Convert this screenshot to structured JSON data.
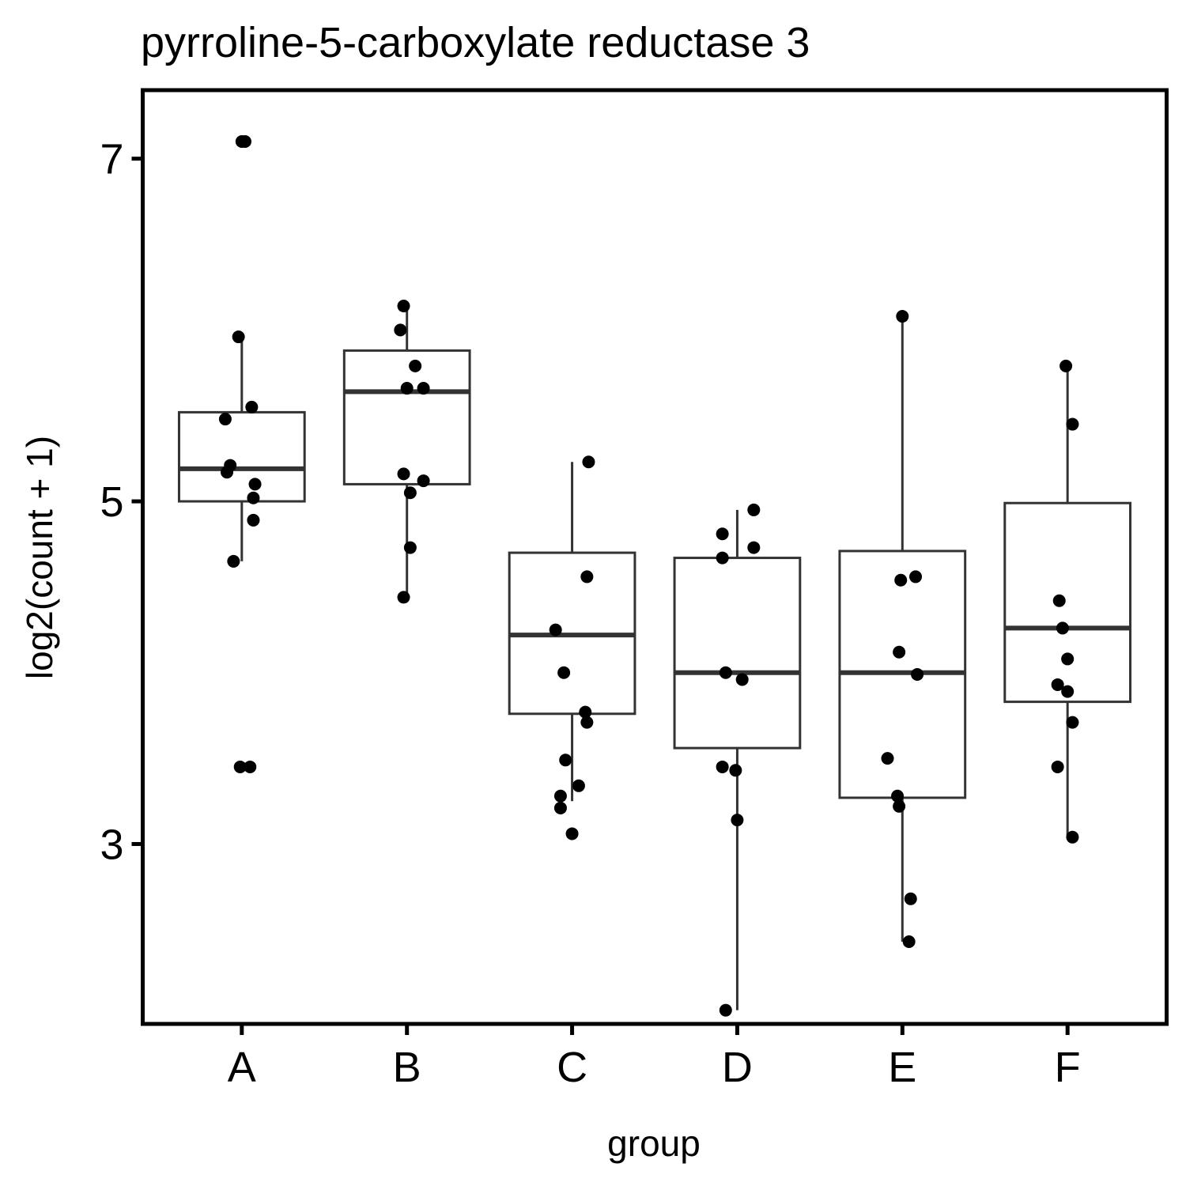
{
  "chart_data": {
    "type": "boxplot",
    "title": "pyrroline-5-carboxylate reductase 3",
    "xlabel": "group",
    "ylabel": "log2(count + 1)",
    "y_ticks": [
      3,
      5,
      7
    ],
    "ylim": [
      1.95,
      7.4
    ],
    "grid": false,
    "legend": "none",
    "colors": {
      "box_stroke": "#333333",
      "point": "#000000",
      "panel_border": "#000000"
    },
    "categories": [
      "A",
      "B",
      "C",
      "D",
      "E",
      "F"
    ],
    "boxes": [
      {
        "group": "A",
        "whisker_low": 4.65,
        "q1": 5.0,
        "median": 5.19,
        "q3": 5.52,
        "whisker_high": 5.96
      },
      {
        "group": "B",
        "whisker_low": 4.44,
        "q1": 5.1,
        "median": 5.64,
        "q3": 5.88,
        "whisker_high": 6.14
      },
      {
        "group": "C",
        "whisker_low": 3.25,
        "q1": 3.76,
        "median": 4.22,
        "q3": 4.7,
        "whisker_high": 5.23
      },
      {
        "group": "D",
        "whisker_low": 2.03,
        "q1": 3.56,
        "median": 4.0,
        "q3": 4.67,
        "whisker_high": 4.95
      },
      {
        "group": "E",
        "whisker_low": 2.43,
        "q1": 3.27,
        "median": 4.0,
        "q3": 4.71,
        "whisker_high": 6.08
      },
      {
        "group": "F",
        "whisker_low": 3.04,
        "q1": 3.83,
        "median": 4.26,
        "q3": 4.99,
        "whisker_high": 5.79
      }
    ],
    "points": [
      {
        "group": "A",
        "x": 1.02,
        "y": 7.1
      },
      {
        "group": "A",
        "x": 1.0,
        "y": 7.1
      },
      {
        "group": "A",
        "x": 0.98,
        "y": 5.96
      },
      {
        "group": "A",
        "x": 1.06,
        "y": 5.55
      },
      {
        "group": "A",
        "x": 0.9,
        "y": 5.48
      },
      {
        "group": "A",
        "x": 0.93,
        "y": 5.21
      },
      {
        "group": "A",
        "x": 0.91,
        "y": 5.17
      },
      {
        "group": "A",
        "x": 1.08,
        "y": 5.1
      },
      {
        "group": "A",
        "x": 1.07,
        "y": 5.02
      },
      {
        "group": "A",
        "x": 1.07,
        "y": 4.89
      },
      {
        "group": "A",
        "x": 0.95,
        "y": 4.65
      },
      {
        "group": "A",
        "x": 0.99,
        "y": 3.45
      },
      {
        "group": "A",
        "x": 1.05,
        "y": 3.45
      },
      {
        "group": "B",
        "x": 1.98,
        "y": 6.14
      },
      {
        "group": "B",
        "x": 1.96,
        "y": 6.0
      },
      {
        "group": "B",
        "x": 2.05,
        "y": 5.79
      },
      {
        "group": "B",
        "x": 2.0,
        "y": 5.66
      },
      {
        "group": "B",
        "x": 2.1,
        "y": 5.66
      },
      {
        "group": "B",
        "x": 1.98,
        "y": 5.16
      },
      {
        "group": "B",
        "x": 2.1,
        "y": 5.12
      },
      {
        "group": "B",
        "x": 2.02,
        "y": 5.05
      },
      {
        "group": "B",
        "x": 2.02,
        "y": 4.73
      },
      {
        "group": "B",
        "x": 1.98,
        "y": 4.44
      },
      {
        "group": "C",
        "x": 3.1,
        "y": 5.23
      },
      {
        "group": "C",
        "x": 3.09,
        "y": 4.56
      },
      {
        "group": "C",
        "x": 2.9,
        "y": 4.25
      },
      {
        "group": "C",
        "x": 2.95,
        "y": 4.0
      },
      {
        "group": "C",
        "x": 3.08,
        "y": 3.77
      },
      {
        "group": "C",
        "x": 3.09,
        "y": 3.71
      },
      {
        "group": "C",
        "x": 2.96,
        "y": 3.49
      },
      {
        "group": "C",
        "x": 3.04,
        "y": 3.34
      },
      {
        "group": "C",
        "x": 2.93,
        "y": 3.28
      },
      {
        "group": "C",
        "x": 2.93,
        "y": 3.21
      },
      {
        "group": "C",
        "x": 3.0,
        "y": 3.06
      },
      {
        "group": "D",
        "x": 4.1,
        "y": 4.95
      },
      {
        "group": "D",
        "x": 3.91,
        "y": 4.81
      },
      {
        "group": "D",
        "x": 4.1,
        "y": 4.73
      },
      {
        "group": "D",
        "x": 3.91,
        "y": 4.67
      },
      {
        "group": "D",
        "x": 3.93,
        "y": 4.0
      },
      {
        "group": "D",
        "x": 4.03,
        "y": 3.96
      },
      {
        "group": "D",
        "x": 3.91,
        "y": 3.45
      },
      {
        "group": "D",
        "x": 3.99,
        "y": 3.43
      },
      {
        "group": "D",
        "x": 4.0,
        "y": 3.14
      },
      {
        "group": "D",
        "x": 3.93,
        "y": 2.03
      },
      {
        "group": "E",
        "x": 5.0,
        "y": 6.08
      },
      {
        "group": "E",
        "x": 4.99,
        "y": 4.54
      },
      {
        "group": "E",
        "x": 5.08,
        "y": 4.56
      },
      {
        "group": "E",
        "x": 4.98,
        "y": 4.12
      },
      {
        "group": "E",
        "x": 5.09,
        "y": 3.99
      },
      {
        "group": "E",
        "x": 4.91,
        "y": 3.5
      },
      {
        "group": "E",
        "x": 4.97,
        "y": 3.28
      },
      {
        "group": "E",
        "x": 4.98,
        "y": 3.22
      },
      {
        "group": "E",
        "x": 5.05,
        "y": 2.68
      },
      {
        "group": "E",
        "x": 5.04,
        "y": 2.43
      },
      {
        "group": "F",
        "x": 5.99,
        "y": 5.79
      },
      {
        "group": "F",
        "x": 6.03,
        "y": 5.45
      },
      {
        "group": "F",
        "x": 5.95,
        "y": 4.42
      },
      {
        "group": "F",
        "x": 5.97,
        "y": 4.26
      },
      {
        "group": "F",
        "x": 6.0,
        "y": 4.08
      },
      {
        "group": "F",
        "x": 5.94,
        "y": 3.93
      },
      {
        "group": "F",
        "x": 6.0,
        "y": 3.89
      },
      {
        "group": "F",
        "x": 6.03,
        "y": 3.71
      },
      {
        "group": "F",
        "x": 5.94,
        "y": 3.45
      },
      {
        "group": "F",
        "x": 6.03,
        "y": 3.04
      }
    ]
  }
}
